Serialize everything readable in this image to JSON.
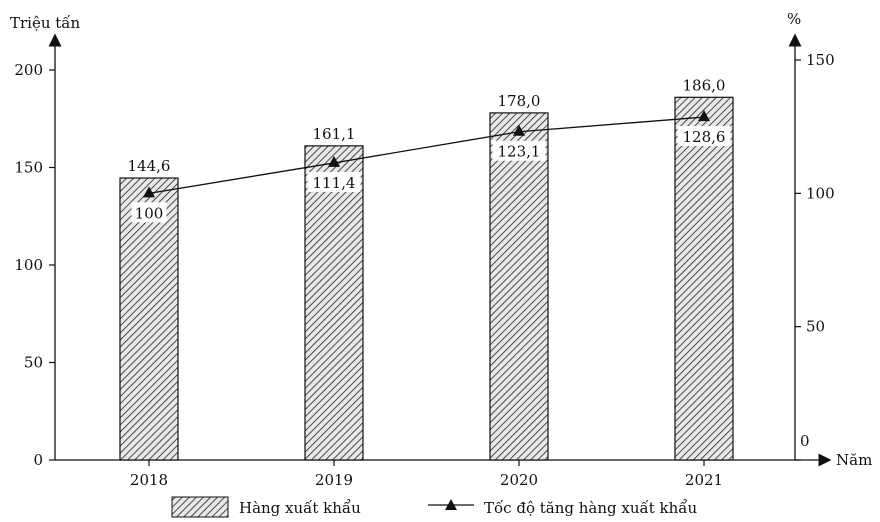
{
  "chart_data": {
    "type": "bar+line",
    "categories": [
      "2018",
      "2019",
      "2020",
      "2021"
    ],
    "series": [
      {
        "name": "Hàng xuất khẩu",
        "type": "bar",
        "axis": "left",
        "values": [
          144.6,
          161.1,
          178.0,
          186.0
        ],
        "labels": [
          "144,6",
          "161,1",
          "178,0",
          "186,0"
        ]
      },
      {
        "name": "Tốc độ tăng hàng xuất khẩu",
        "type": "line",
        "axis": "right",
        "values": [
          100,
          111.4,
          123.1,
          128.6
        ],
        "labels": [
          "100",
          "111,4",
          "123,1",
          "128,6"
        ]
      }
    ],
    "left_axis": {
      "label": "Triệu tấn",
      "range": [
        0,
        200
      ],
      "ticks": [
        "0",
        "50",
        "100",
        "150",
        "200"
      ]
    },
    "right_axis": {
      "label": "%",
      "range": [
        0,
        150
      ],
      "ticks": [
        "0",
        "50",
        "100",
        "150"
      ]
    },
    "x_axis": {
      "label": "Năm"
    },
    "legend": {
      "placement": "bottom"
    },
    "grid": false
  }
}
